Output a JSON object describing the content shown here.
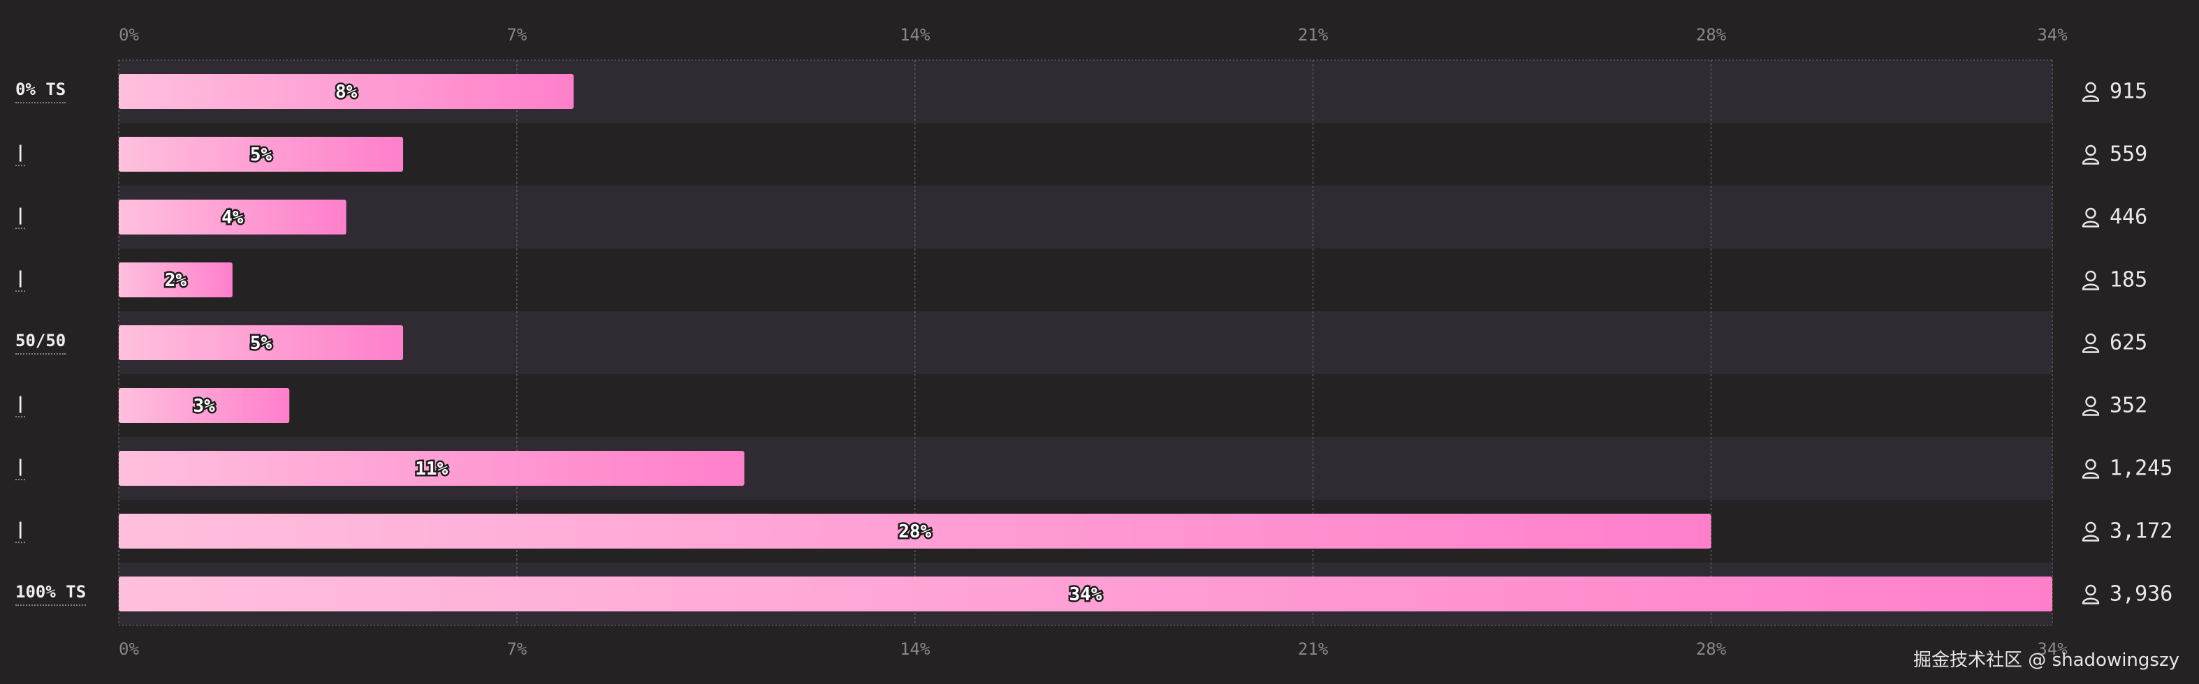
{
  "chart_data": {
    "type": "bar",
    "orientation": "horizontal",
    "categories": [
      "0% TS",
      "|",
      "|",
      "|",
      "50/50",
      "|",
      "|",
      "|",
      "100% TS"
    ],
    "values": [
      8,
      5,
      4,
      2,
      5,
      3,
      11,
      28,
      34
    ],
    "value_labels": [
      "8%",
      "5%",
      "4%",
      "2%",
      "5%",
      "3%",
      "11%",
      "28%",
      "34%"
    ],
    "counts": [
      "915",
      "559",
      "446",
      "185",
      "625",
      "352",
      "1,245",
      "3,172",
      "3,936"
    ],
    "xlim": [
      0,
      34
    ],
    "xticks": [
      "0%",
      "7%",
      "14%",
      "21%",
      "28%",
      "34%"
    ],
    "xtick_values": [
      0,
      7,
      14,
      21,
      28,
      34
    ],
    "xaxis": "top-and-bottom",
    "grid": true,
    "colors": {
      "bar_start": "#ffc0dd",
      "bar_end": "#ff7fcb",
      "band": "#302a33",
      "grid": "#5d5759",
      "tick": "#8c8688"
    }
  },
  "count_icon": "person-icon",
  "watermark": "掘金技术社区 @ shadowingszy"
}
